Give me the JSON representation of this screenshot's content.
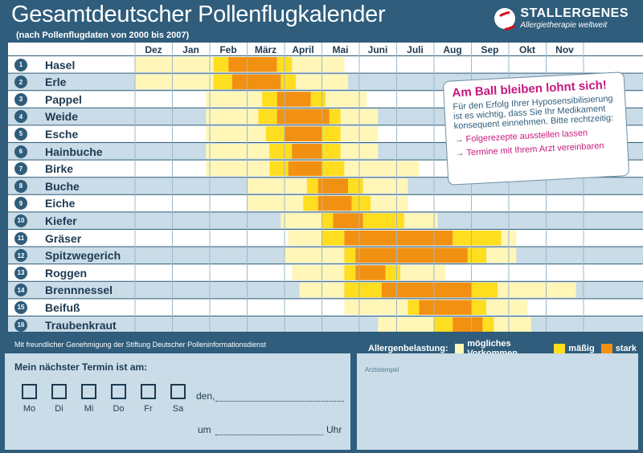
{
  "header": {
    "title": "Gesamtdeutscher Pollenflugkalender",
    "subtitle": "(nach Pollenflugdaten von 2000 bis 2007)",
    "brand_name": "STALLERGENES",
    "brand_tagline": "Allergietherapie weltweit"
  },
  "colors": {
    "background": "#2f5d7b",
    "grid_row_light": "#ffffff",
    "grid_row_dark": "#c9dce7",
    "possible": "#fff6b8",
    "moderate": "#ffdd1f",
    "strong": "#f29111",
    "accent_magenta": "#c8177e"
  },
  "chart_data": {
    "type": "heatmap",
    "title": "Gesamtdeutscher Pollenflugkalender",
    "subtitle": "(nach Pollenflugdaten von 2000 bis 2007)",
    "x_unit": "month (0 = Dezember, 12 = Dezember end)",
    "months": [
      "Dez",
      "Jan",
      "Feb",
      "März",
      "April",
      "Mai",
      "Juni",
      "Juli",
      "Aug",
      "Sep",
      "Okt",
      "Nov"
    ],
    "levels": [
      "mögliches Vorkommen",
      "mäßig",
      "stark"
    ],
    "series": [
      {
        "num": "1",
        "name": "Hasel",
        "segments": [
          {
            "start": 0.0,
            "end": 2.1,
            "level": 0
          },
          {
            "start": 2.1,
            "end": 2.5,
            "level": 1
          },
          {
            "start": 2.5,
            "end": 3.8,
            "level": 2
          },
          {
            "start": 3.8,
            "end": 4.2,
            "level": 1
          },
          {
            "start": 4.2,
            "end": 5.6,
            "level": 0
          }
        ]
      },
      {
        "num": "2",
        "name": "Erle",
        "segments": [
          {
            "start": 0.0,
            "end": 2.1,
            "level": 0
          },
          {
            "start": 2.1,
            "end": 2.6,
            "level": 1
          },
          {
            "start": 2.6,
            "end": 3.9,
            "level": 2
          },
          {
            "start": 3.9,
            "end": 4.3,
            "level": 1
          },
          {
            "start": 4.3,
            "end": 5.7,
            "level": 0
          }
        ]
      },
      {
        "num": "3",
        "name": "Pappel",
        "segments": [
          {
            "start": 1.9,
            "end": 3.4,
            "level": 0
          },
          {
            "start": 3.4,
            "end": 3.8,
            "level": 1
          },
          {
            "start": 3.8,
            "end": 4.7,
            "level": 2
          },
          {
            "start": 4.7,
            "end": 5.1,
            "level": 1
          },
          {
            "start": 5.1,
            "end": 6.2,
            "level": 0
          }
        ]
      },
      {
        "num": "4",
        "name": "Weide",
        "segments": [
          {
            "start": 1.9,
            "end": 3.3,
            "level": 0
          },
          {
            "start": 3.3,
            "end": 3.8,
            "level": 1
          },
          {
            "start": 3.8,
            "end": 5.2,
            "level": 2
          },
          {
            "start": 5.2,
            "end": 5.5,
            "level": 1
          },
          {
            "start": 5.5,
            "end": 6.5,
            "level": 0
          }
        ]
      },
      {
        "num": "5",
        "name": "Esche",
        "segments": [
          {
            "start": 1.9,
            "end": 3.5,
            "level": 0
          },
          {
            "start": 3.5,
            "end": 4.0,
            "level": 1
          },
          {
            "start": 4.0,
            "end": 5.0,
            "level": 2
          },
          {
            "start": 5.0,
            "end": 5.5,
            "level": 1
          },
          {
            "start": 5.5,
            "end": 6.5,
            "level": 0
          }
        ]
      },
      {
        "num": "6",
        "name": "Hainbuche",
        "segments": [
          {
            "start": 1.9,
            "end": 3.6,
            "level": 0
          },
          {
            "start": 3.6,
            "end": 4.2,
            "level": 1
          },
          {
            "start": 4.2,
            "end": 5.0,
            "level": 2
          },
          {
            "start": 5.0,
            "end": 5.5,
            "level": 1
          },
          {
            "start": 5.5,
            "end": 6.5,
            "level": 0
          }
        ]
      },
      {
        "num": "7",
        "name": "Birke",
        "segments": [
          {
            "start": 1.9,
            "end": 3.6,
            "level": 0
          },
          {
            "start": 3.6,
            "end": 4.1,
            "level": 1
          },
          {
            "start": 4.1,
            "end": 5.0,
            "level": 2
          },
          {
            "start": 5.0,
            "end": 5.6,
            "level": 1
          },
          {
            "start": 5.6,
            "end": 7.6,
            "level": 0
          }
        ]
      },
      {
        "num": "8",
        "name": "Buche",
        "segments": [
          {
            "start": 3.0,
            "end": 4.6,
            "level": 0
          },
          {
            "start": 4.6,
            "end": 4.9,
            "level": 1
          },
          {
            "start": 4.9,
            "end": 5.7,
            "level": 2
          },
          {
            "start": 5.7,
            "end": 6.1,
            "level": 1
          },
          {
            "start": 6.1,
            "end": 7.3,
            "level": 0
          }
        ]
      },
      {
        "num": "9",
        "name": "Eiche",
        "segments": [
          {
            "start": 3.0,
            "end": 4.5,
            "level": 0
          },
          {
            "start": 4.5,
            "end": 4.9,
            "level": 1
          },
          {
            "start": 4.9,
            "end": 5.8,
            "level": 2
          },
          {
            "start": 5.8,
            "end": 6.3,
            "level": 1
          },
          {
            "start": 6.3,
            "end": 7.3,
            "level": 0
          }
        ]
      },
      {
        "num": "10",
        "name": "Kiefer",
        "segments": [
          {
            "start": 3.9,
            "end": 5.0,
            "level": 0
          },
          {
            "start": 5.0,
            "end": 5.3,
            "level": 1
          },
          {
            "start": 5.3,
            "end": 6.1,
            "level": 2
          },
          {
            "start": 6.1,
            "end": 7.2,
            "level": 1
          },
          {
            "start": 7.2,
            "end": 8.1,
            "level": 0
          }
        ]
      },
      {
        "num": "11",
        "name": "Gräser",
        "segments": [
          {
            "start": 4.1,
            "end": 5.0,
            "level": 0
          },
          {
            "start": 5.0,
            "end": 5.6,
            "level": 1
          },
          {
            "start": 5.6,
            "end": 8.5,
            "level": 2
          },
          {
            "start": 8.5,
            "end": 9.8,
            "level": 1
          },
          {
            "start": 9.8,
            "end": 10.2,
            "level": 0
          }
        ]
      },
      {
        "num": "12",
        "name": "Spitzwegerich",
        "segments": [
          {
            "start": 4.0,
            "end": 5.6,
            "level": 0
          },
          {
            "start": 5.6,
            "end": 5.9,
            "level": 1
          },
          {
            "start": 5.9,
            "end": 8.9,
            "level": 2
          },
          {
            "start": 8.9,
            "end": 9.4,
            "level": 1
          },
          {
            "start": 9.4,
            "end": 10.2,
            "level": 0
          }
        ]
      },
      {
        "num": "13",
        "name": "Roggen",
        "segments": [
          {
            "start": 4.2,
            "end": 5.6,
            "level": 0
          },
          {
            "start": 5.6,
            "end": 5.9,
            "level": 1
          },
          {
            "start": 5.9,
            "end": 6.7,
            "level": 2
          },
          {
            "start": 6.7,
            "end": 7.1,
            "level": 1
          },
          {
            "start": 7.1,
            "end": 8.3,
            "level": 0
          }
        ]
      },
      {
        "num": "14",
        "name": "Brennnessel",
        "segments": [
          {
            "start": 4.4,
            "end": 5.6,
            "level": 0
          },
          {
            "start": 5.6,
            "end": 6.6,
            "level": 1
          },
          {
            "start": 6.6,
            "end": 9.0,
            "level": 2
          },
          {
            "start": 9.0,
            "end": 9.7,
            "level": 1
          },
          {
            "start": 9.7,
            "end": 11.8,
            "level": 0
          }
        ]
      },
      {
        "num": "15",
        "name": "Beifuß",
        "segments": [
          {
            "start": 5.6,
            "end": 7.3,
            "level": 0
          },
          {
            "start": 7.3,
            "end": 7.6,
            "level": 1
          },
          {
            "start": 7.6,
            "end": 9.0,
            "level": 2
          },
          {
            "start": 9.0,
            "end": 9.4,
            "level": 1
          },
          {
            "start": 9.4,
            "end": 10.5,
            "level": 0
          }
        ]
      },
      {
        "num": "16",
        "name": "Traubenkraut",
        "segments": [
          {
            "start": 6.5,
            "end": 8.0,
            "level": 0
          },
          {
            "start": 8.0,
            "end": 8.5,
            "level": 1
          },
          {
            "start": 8.5,
            "end": 9.3,
            "level": 2
          },
          {
            "start": 9.3,
            "end": 9.6,
            "level": 1
          },
          {
            "start": 9.6,
            "end": 10.6,
            "level": 0
          }
        ]
      }
    ]
  },
  "callout": {
    "title": "Am Ball bleiben lohnt sich!",
    "text": "Für den Erfolg Ihrer Hyposensibilisierung ist es wichtig, dass Sie Ihr Medikament konsequent einnehmen. Bitte rechtzeitig:",
    "items": [
      "Folgerezepte ausstellen lassen",
      "Termine mit Ihrem Arzt vereinbaren"
    ],
    "arrow": "→"
  },
  "footer": {
    "credit": "Mit freundlicher Genehmigung der Stiftung Deutscher Polleninformationsdienst",
    "legend_title": "Allergenbelastung:",
    "legend_items": [
      "mögliches Vorkommen",
      "mäßig",
      "stark"
    ]
  },
  "termin": {
    "title": "Mein nächster Termin ist am:",
    "days": [
      "Mo",
      "Di",
      "Mi",
      "Do",
      "Fr",
      "Sa"
    ],
    "date_label": "den,",
    "time_prefix": "um",
    "time_suffix": "Uhr"
  },
  "stempel": {
    "label": "Arztstempel"
  }
}
